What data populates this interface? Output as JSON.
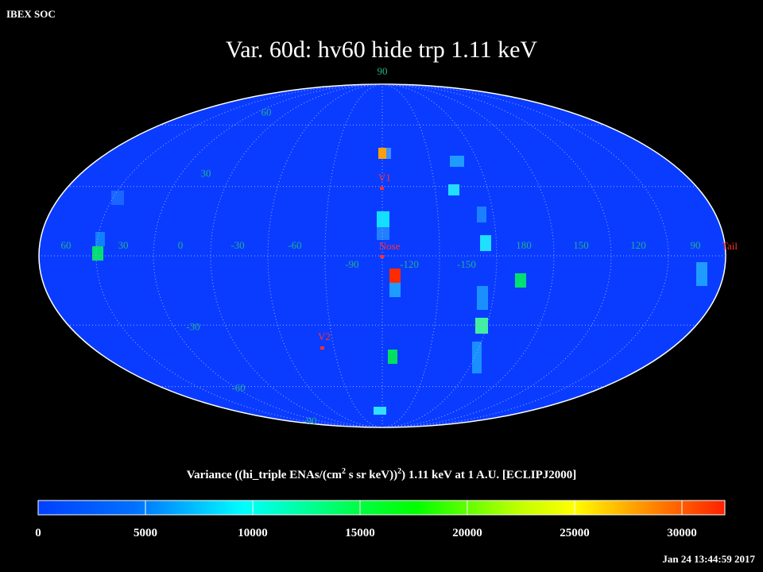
{
  "header": {
    "org": "IBEX SOC",
    "title": "Var. 60d: hv60 hide trp 1.11 keV",
    "timestamp": "Jan 24 13:44:59 2017"
  },
  "map": {
    "projection": "mollweide",
    "lat_labels": [
      90,
      60,
      30,
      -30,
      -60,
      -90
    ],
    "lon_labels": [
      60,
      30,
      0,
      -30,
      -60,
      -90,
      -120,
      -150,
      180,
      150,
      120,
      90
    ],
    "markers": [
      {
        "label": "V1"
      },
      {
        "label": "Nose"
      },
      {
        "label": "V2"
      },
      {
        "label": "Tail"
      }
    ]
  },
  "colorbar": {
    "label_parts": [
      "Variance ((hi_triple ENAs/(cm",
      "2",
      " s sr keV))",
      "2",
      ") 1.11 keV at 1 A.U. [ECLIPJ2000]"
    ],
    "range": [
      0,
      32000
    ],
    "ticks": [
      0,
      5000,
      10000,
      15000,
      20000,
      25000,
      30000
    ]
  }
}
